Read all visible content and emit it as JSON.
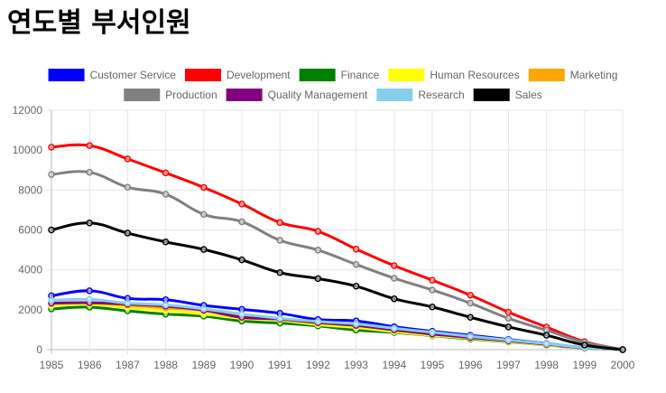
{
  "page": {
    "title": "연도별 부서인원"
  },
  "chart_data": {
    "type": "line",
    "title": "연도별 부서인원",
    "xlabel": "",
    "ylabel": "",
    "ylim": [
      0,
      12000
    ],
    "yticks": [
      0,
      2000,
      4000,
      6000,
      8000,
      10000,
      12000
    ],
    "grid": true,
    "legend": "top",
    "x": [
      "1985",
      "1986",
      "1987",
      "1988",
      "1989",
      "1990",
      "1991",
      "1992",
      "1993",
      "1994",
      "1995",
      "1996",
      "1997",
      "1998",
      "1999",
      "2000"
    ],
    "series": [
      {
        "name": "Customer Service",
        "color": "#0000ff",
        "values": [
          2700,
          2950,
          2570,
          2500,
          2220,
          2020,
          1820,
          1510,
          1440,
          1150,
          920,
          720,
          510,
          310,
          100,
          0
        ]
      },
      {
        "name": "Development",
        "color": "#ff0000",
        "values": [
          10150,
          10230,
          9560,
          8860,
          8130,
          7300,
          6370,
          5930,
          5040,
          4210,
          3480,
          2730,
          1880,
          1130,
          400,
          0
        ]
      },
      {
        "name": "Finance",
        "color": "#008000",
        "values": [
          2040,
          2130,
          1940,
          1780,
          1680,
          1430,
          1330,
          1190,
          980,
          860,
          700,
          540,
          390,
          230,
          80,
          0
        ]
      },
      {
        "name": "Human Resources",
        "color": "#ffff00",
        "values": [
          2200,
          2270,
          2100,
          1960,
          1780,
          1570,
          1470,
          1250,
          1110,
          900,
          720,
          570,
          400,
          240,
          90,
          0
        ]
      },
      {
        "name": "Marketing",
        "color": "#ffa500",
        "values": [
          2320,
          2350,
          2230,
          2090,
          1950,
          1650,
          1520,
          1370,
          1220,
          1010,
          810,
          630,
          450,
          280,
          100,
          0
        ]
      },
      {
        "name": "Production",
        "color": "#808080",
        "values": [
          8780,
          8890,
          8140,
          7790,
          6780,
          6410,
          5480,
          4990,
          4270,
          3580,
          2990,
          2330,
          1570,
          970,
          360,
          0
        ]
      },
      {
        "name": "Quality Management",
        "color": "#800080",
        "values": [
          2330,
          2350,
          2280,
          2180,
          1980,
          1620,
          1530,
          1350,
          1210,
          990,
          780,
          610,
          440,
          270,
          90,
          0
        ]
      },
      {
        "name": "Research",
        "color": "#87ceeb",
        "values": [
          2470,
          2520,
          2330,
          2240,
          2040,
          1780,
          1570,
          1410,
          1290,
          1070,
          870,
          670,
          480,
          300,
          100,
          0
        ]
      },
      {
        "name": "Sales",
        "color": "#000000",
        "values": [
          6000,
          6350,
          5840,
          5400,
          5020,
          4500,
          3860,
          3560,
          3180,
          2550,
          2140,
          1620,
          1140,
          720,
          230,
          0
        ]
      }
    ]
  }
}
